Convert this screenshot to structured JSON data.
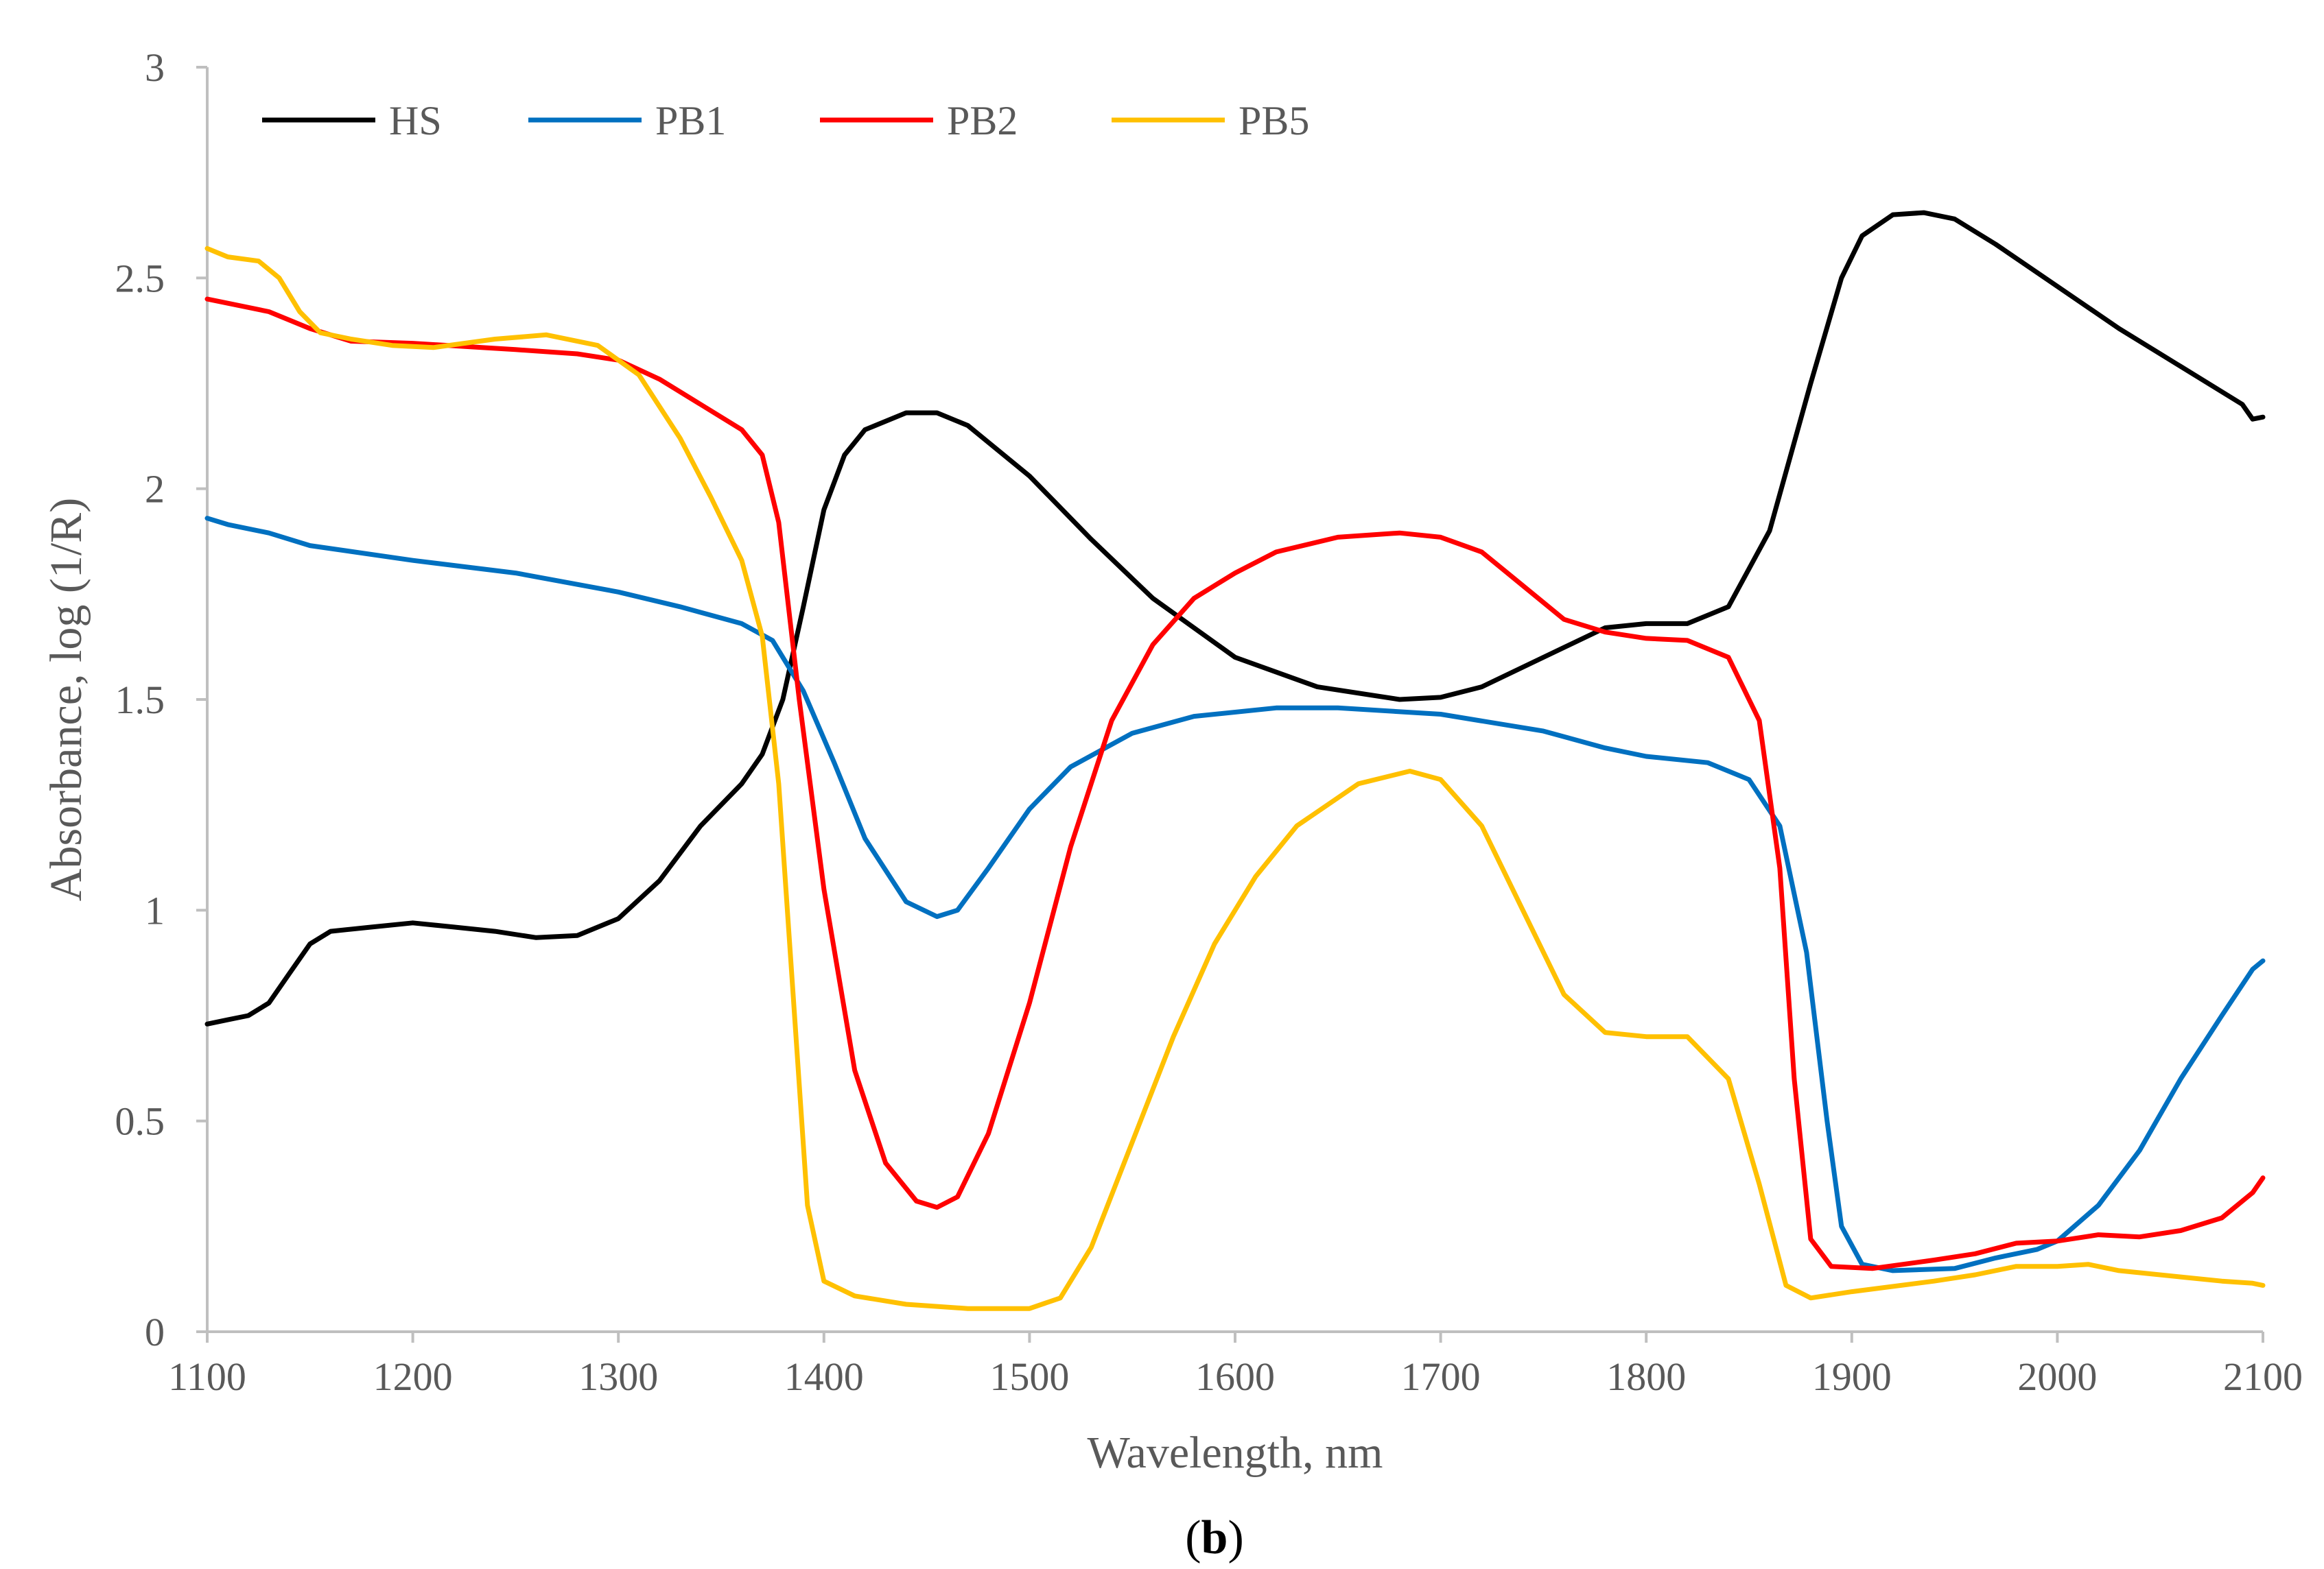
{
  "chart_data": {
    "type": "line",
    "title": "",
    "xlabel": "Wavelength, nm",
    "ylabel": "Absorbance, log (1/R)",
    "xlim": [
      1100,
      2100
    ],
    "ylim": [
      0,
      3
    ],
    "x_ticks": [
      1100,
      1200,
      1300,
      1400,
      1500,
      1600,
      1700,
      1800,
      1900,
      2000,
      2100
    ],
    "y_ticks": [
      0,
      0.5,
      1,
      1.5,
      2,
      2.5,
      3
    ],
    "y_tick_labels": [
      "0",
      "0.5",
      "1",
      "1.5",
      "2",
      "2.5",
      "3"
    ],
    "grid": false,
    "legend_position": "top-left",
    "panel_label": {
      "open": "(",
      "letter": "b",
      "close": ")"
    },
    "series": [
      {
        "name": "HS",
        "color": "#000000",
        "points": [
          [
            1100,
            0.73
          ],
          [
            1110,
            0.74
          ],
          [
            1120,
            0.75
          ],
          [
            1130,
            0.78
          ],
          [
            1140,
            0.85
          ],
          [
            1150,
            0.92
          ],
          [
            1160,
            0.95
          ],
          [
            1180,
            0.96
          ],
          [
            1200,
            0.97
          ],
          [
            1220,
            0.96
          ],
          [
            1240,
            0.95
          ],
          [
            1260,
            0.935
          ],
          [
            1280,
            0.94
          ],
          [
            1300,
            0.98
          ],
          [
            1320,
            1.07
          ],
          [
            1340,
            1.2
          ],
          [
            1360,
            1.3
          ],
          [
            1370,
            1.37
          ],
          [
            1380,
            1.5
          ],
          [
            1390,
            1.72
          ],
          [
            1400,
            1.95
          ],
          [
            1410,
            2.08
          ],
          [
            1420,
            2.14
          ],
          [
            1440,
            2.18
          ],
          [
            1455,
            2.18
          ],
          [
            1470,
            2.15
          ],
          [
            1500,
            2.03
          ],
          [
            1530,
            1.88
          ],
          [
            1560,
            1.74
          ],
          [
            1600,
            1.6
          ],
          [
            1640,
            1.53
          ],
          [
            1680,
            1.5
          ],
          [
            1700,
            1.505
          ],
          [
            1720,
            1.53
          ],
          [
            1750,
            1.6
          ],
          [
            1780,
            1.67
          ],
          [
            1800,
            1.68
          ],
          [
            1820,
            1.68
          ],
          [
            1840,
            1.72
          ],
          [
            1860,
            1.9
          ],
          [
            1880,
            2.25
          ],
          [
            1895,
            2.5
          ],
          [
            1905,
            2.6
          ],
          [
            1920,
            2.65
          ],
          [
            1935,
            2.655
          ],
          [
            1950,
            2.64
          ],
          [
            1970,
            2.58
          ],
          [
            2000,
            2.48
          ],
          [
            2030,
            2.38
          ],
          [
            2060,
            2.29
          ],
          [
            2090,
            2.2
          ],
          [
            2095,
            2.165
          ],
          [
            2100,
            2.17
          ]
        ]
      },
      {
        "name": "PB1",
        "color": "#0070c0",
        "points": [
          [
            1100,
            1.93
          ],
          [
            1110,
            1.915
          ],
          [
            1130,
            1.895
          ],
          [
            1150,
            1.865
          ],
          [
            1200,
            1.83
          ],
          [
            1250,
            1.8
          ],
          [
            1300,
            1.755
          ],
          [
            1330,
            1.72
          ],
          [
            1360,
            1.68
          ],
          [
            1375,
            1.64
          ],
          [
            1390,
            1.52
          ],
          [
            1405,
            1.35
          ],
          [
            1420,
            1.17
          ],
          [
            1440,
            1.02
          ],
          [
            1455,
            0.985
          ],
          [
            1465,
            1.0
          ],
          [
            1480,
            1.1
          ],
          [
            1500,
            1.24
          ],
          [
            1520,
            1.34
          ],
          [
            1550,
            1.42
          ],
          [
            1580,
            1.46
          ],
          [
            1620,
            1.48
          ],
          [
            1650,
            1.48
          ],
          [
            1700,
            1.465
          ],
          [
            1750,
            1.425
          ],
          [
            1780,
            1.385
          ],
          [
            1800,
            1.365
          ],
          [
            1830,
            1.35
          ],
          [
            1850,
            1.31
          ],
          [
            1865,
            1.2
          ],
          [
            1878,
            0.9
          ],
          [
            1888,
            0.5
          ],
          [
            1895,
            0.25
          ],
          [
            1905,
            0.16
          ],
          [
            1920,
            0.145
          ],
          [
            1950,
            0.15
          ],
          [
            1970,
            0.175
          ],
          [
            1990,
            0.195
          ],
          [
            2000,
            0.215
          ],
          [
            2020,
            0.3
          ],
          [
            2040,
            0.43
          ],
          [
            2060,
            0.6
          ],
          [
            2080,
            0.75
          ],
          [
            2095,
            0.86
          ],
          [
            2100,
            0.88
          ]
        ]
      },
      {
        "name": "PB2",
        "color": "#ff0000",
        "points": [
          [
            1100,
            2.45
          ],
          [
            1110,
            2.44
          ],
          [
            1130,
            2.42
          ],
          [
            1150,
            2.38
          ],
          [
            1170,
            2.35
          ],
          [
            1200,
            2.345
          ],
          [
            1250,
            2.33
          ],
          [
            1280,
            2.32
          ],
          [
            1300,
            2.305
          ],
          [
            1320,
            2.26
          ],
          [
            1340,
            2.2
          ],
          [
            1360,
            2.14
          ],
          [
            1370,
            2.08
          ],
          [
            1378,
            1.92
          ],
          [
            1388,
            1.5
          ],
          [
            1400,
            1.05
          ],
          [
            1415,
            0.62
          ],
          [
            1430,
            0.4
          ],
          [
            1445,
            0.31
          ],
          [
            1455,
            0.295
          ],
          [
            1465,
            0.32
          ],
          [
            1480,
            0.47
          ],
          [
            1500,
            0.78
          ],
          [
            1520,
            1.15
          ],
          [
            1540,
            1.45
          ],
          [
            1560,
            1.63
          ],
          [
            1580,
            1.74
          ],
          [
            1600,
            1.8
          ],
          [
            1620,
            1.85
          ],
          [
            1650,
            1.885
          ],
          [
            1680,
            1.895
          ],
          [
            1700,
            1.885
          ],
          [
            1720,
            1.85
          ],
          [
            1740,
            1.77
          ],
          [
            1760,
            1.69
          ],
          [
            1780,
            1.66
          ],
          [
            1800,
            1.645
          ],
          [
            1820,
            1.64
          ],
          [
            1840,
            1.6
          ],
          [
            1855,
            1.45
          ],
          [
            1865,
            1.1
          ],
          [
            1872,
            0.6
          ],
          [
            1880,
            0.22
          ],
          [
            1890,
            0.155
          ],
          [
            1910,
            0.15
          ],
          [
            1940,
            0.17
          ],
          [
            1960,
            0.185
          ],
          [
            1980,
            0.21
          ],
          [
            2000,
            0.215
          ],
          [
            2020,
            0.23
          ],
          [
            2040,
            0.225
          ],
          [
            2060,
            0.24
          ],
          [
            2080,
            0.27
          ],
          [
            2095,
            0.33
          ],
          [
            2100,
            0.365
          ]
        ]
      },
      {
        "name": "PB5",
        "color": "#ffc000",
        "points": [
          [
            1100,
            2.57
          ],
          [
            1105,
            2.56
          ],
          [
            1110,
            2.55
          ],
          [
            1125,
            2.54
          ],
          [
            1135,
            2.5
          ],
          [
            1145,
            2.42
          ],
          [
            1155,
            2.37
          ],
          [
            1170,
            2.355
          ],
          [
            1190,
            2.34
          ],
          [
            1210,
            2.335
          ],
          [
            1240,
            2.355
          ],
          [
            1265,
            2.365
          ],
          [
            1290,
            2.34
          ],
          [
            1310,
            2.27
          ],
          [
            1330,
            2.12
          ],
          [
            1345,
            1.98
          ],
          [
            1360,
            1.83
          ],
          [
            1370,
            1.65
          ],
          [
            1378,
            1.3
          ],
          [
            1385,
            0.8
          ],
          [
            1392,
            0.3
          ],
          [
            1400,
            0.12
          ],
          [
            1415,
            0.085
          ],
          [
            1440,
            0.065
          ],
          [
            1470,
            0.055
          ],
          [
            1500,
            0.055
          ],
          [
            1515,
            0.08
          ],
          [
            1530,
            0.2
          ],
          [
            1550,
            0.45
          ],
          [
            1570,
            0.7
          ],
          [
            1590,
            0.92
          ],
          [
            1610,
            1.08
          ],
          [
            1630,
            1.2
          ],
          [
            1660,
            1.3
          ],
          [
            1685,
            1.33
          ],
          [
            1700,
            1.31
          ],
          [
            1720,
            1.2
          ],
          [
            1740,
            1.0
          ],
          [
            1760,
            0.8
          ],
          [
            1780,
            0.71
          ],
          [
            1800,
            0.7
          ],
          [
            1820,
            0.7
          ],
          [
            1840,
            0.6
          ],
          [
            1855,
            0.35
          ],
          [
            1868,
            0.11
          ],
          [
            1880,
            0.08
          ],
          [
            1900,
            0.095
          ],
          [
            1940,
            0.12
          ],
          [
            1960,
            0.135
          ],
          [
            1980,
            0.155
          ],
          [
            2000,
            0.155
          ],
          [
            2015,
            0.16
          ],
          [
            2030,
            0.145
          ],
          [
            2060,
            0.13
          ],
          [
            2080,
            0.12
          ],
          [
            2095,
            0.115
          ],
          [
            2100,
            0.11
          ]
        ]
      }
    ]
  }
}
